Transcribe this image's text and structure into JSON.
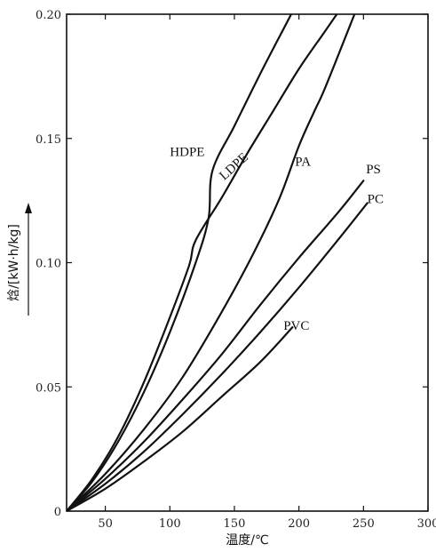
{
  "chart_data": {
    "type": "line",
    "xlabel": "温度/℃",
    "ylabel": "焓/[kW·h/kg]",
    "xlim": [
      20,
      300
    ],
    "ylim": [
      0,
      0.2
    ],
    "xticks": [
      50,
      100,
      150,
      200,
      250,
      300
    ],
    "yticks": [
      0,
      0.05,
      0.1,
      0.15,
      0.2
    ],
    "ytick_labels": [
      "0",
      "0.05",
      "0.10",
      "0.15",
      "0.20"
    ],
    "grid": false,
    "series": [
      {
        "name": "HDPE",
        "points": [
          [
            20,
            0
          ],
          [
            40,
            0.012
          ],
          [
            60,
            0.028
          ],
          [
            80,
            0.048
          ],
          [
            100,
            0.072
          ],
          [
            120,
            0.1
          ],
          [
            130,
            0.118
          ],
          [
            133,
            0.137
          ],
          [
            150,
            0.155
          ],
          [
            170,
            0.176
          ],
          [
            190,
            0.196
          ],
          [
            194,
            0.2
          ]
        ]
      },
      {
        "name": "LDPE",
        "points": [
          [
            20,
            0
          ],
          [
            40,
            0.013
          ],
          [
            60,
            0.03
          ],
          [
            80,
            0.052
          ],
          [
            100,
            0.078
          ],
          [
            115,
            0.099
          ],
          [
            120,
            0.109
          ],
          [
            140,
            0.126
          ],
          [
            160,
            0.144
          ],
          [
            180,
            0.161
          ],
          [
            200,
            0.178
          ],
          [
            220,
            0.193
          ],
          [
            240,
            0.208
          ],
          [
            260,
            0.223
          ],
          [
            274,
            0.233
          ]
        ]
      },
      {
        "name": "PA",
        "points": [
          [
            20,
            0
          ],
          [
            50,
            0.015
          ],
          [
            80,
            0.033
          ],
          [
            110,
            0.054
          ],
          [
            140,
            0.08
          ],
          [
            165,
            0.104
          ],
          [
            185,
            0.126
          ],
          [
            200,
            0.147
          ],
          [
            212,
            0.161
          ],
          [
            220,
            0.17
          ],
          [
            240,
            0.196
          ],
          [
            243,
            0.2
          ]
        ]
      },
      {
        "name": "PS",
        "points": [
          [
            20,
            0
          ],
          [
            50,
            0.013
          ],
          [
            80,
            0.028
          ],
          [
            110,
            0.045
          ],
          [
            140,
            0.063
          ],
          [
            170,
            0.083
          ],
          [
            200,
            0.102
          ],
          [
            230,
            0.12
          ],
          [
            250,
            0.133
          ]
        ]
      },
      {
        "name": "PC",
        "points": [
          [
            20,
            0
          ],
          [
            50,
            0.011
          ],
          [
            80,
            0.024
          ],
          [
            110,
            0.039
          ],
          [
            140,
            0.055
          ],
          [
            170,
            0.072
          ],
          [
            200,
            0.09
          ],
          [
            230,
            0.109
          ],
          [
            253,
            0.124
          ]
        ]
      },
      {
        "name": "PVC",
        "points": [
          [
            20,
            0
          ],
          [
            50,
            0.009
          ],
          [
            80,
            0.02
          ],
          [
            110,
            0.032
          ],
          [
            140,
            0.046
          ],
          [
            170,
            0.06
          ],
          [
            195,
            0.074
          ]
        ]
      }
    ],
    "annotations": [
      {
        "text": "HDPE",
        "x": 100,
        "y": 0.143
      },
      {
        "text": "LDPE",
        "x": 142,
        "y": 0.133
      },
      {
        "text": "PA",
        "x": 197,
        "y": 0.139
      },
      {
        "text": "PS",
        "x": 252,
        "y": 0.136
      },
      {
        "text": "PC",
        "x": 253,
        "y": 0.124
      },
      {
        "text": "PVC",
        "x": 188,
        "y": 0.073
      }
    ]
  }
}
